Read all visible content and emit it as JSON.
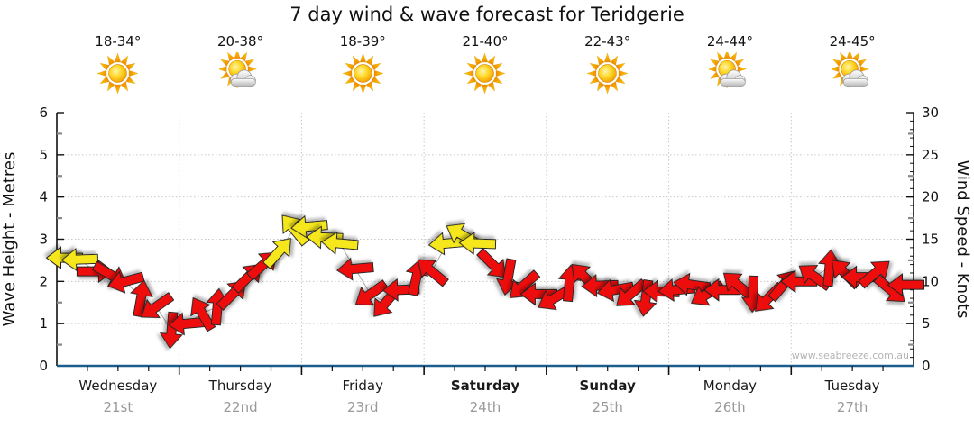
{
  "title": "7 day wind & wave forecast for Teridgerie",
  "watermark": "www.seabreeze.com.au",
  "colors": {
    "arrow_red": "#ee1111",
    "arrow_yellow": "#f5e71e",
    "arrow_outline": "#222222",
    "bottom_axis_blue": "#1b5e8e",
    "grid_gray": "#c8c8c8",
    "connector_gray": "#aaaaaa",
    "date_gray": "#999999",
    "watermark_gray": "#b4b4b4"
  },
  "days": [
    {
      "name": "Wednesday",
      "date": "21st",
      "temp": "18-34°",
      "icon": "sunny",
      "bold": false
    },
    {
      "name": "Thursday",
      "date": "22nd",
      "temp": "20-38°",
      "icon": "partly-cloudy",
      "bold": false
    },
    {
      "name": "Friday",
      "date": "23rd",
      "temp": "18-39°",
      "icon": "sunny",
      "bold": false
    },
    {
      "name": "Saturday",
      "date": "24th",
      "temp": "21-40°",
      "icon": "sunny",
      "bold": true
    },
    {
      "name": "Sunday",
      "date": "25th",
      "temp": "22-43°",
      "icon": "sunny",
      "bold": true
    },
    {
      "name": "Monday",
      "date": "26th",
      "temp": "24-44°",
      "icon": "partly-cloudy",
      "bold": false
    },
    {
      "name": "Tuesday",
      "date": "27th",
      "temp": "24-45°",
      "icon": "partly-cloudy",
      "bold": false
    }
  ],
  "chart_data": {
    "type": "scatter",
    "subtype": "wind-direction-arrows",
    "title": "7 day wind & wave forecast for Teridgerie",
    "x_axis": "time, 3-hour intervals over 7 days (56 arrows, Wednesday 21st to Tuesday 27th)",
    "left_axis": {
      "label": "Wave Height - Metres",
      "min": 0,
      "max": 6,
      "tick_step": 1,
      "ticks": [
        0,
        1,
        2,
        3,
        4,
        5,
        6
      ]
    },
    "right_axis": {
      "label": "Wind Speed - Knots",
      "min": 0,
      "max": 30,
      "tick_step": 5,
      "ticks": [
        0,
        5,
        10,
        15,
        20,
        25,
        30
      ]
    },
    "grid": "dotted horizontal lines at 1-5 metres; dotted vertical lines at day boundaries",
    "legend": "none",
    "arrow_value_axis": "right (wind speed in knots)",
    "arrow_direction_convention": "degrees counter-clockwise from east; arrow points where wind blows toward",
    "arrows": [
      [
        0,
        12.8,
        180,
        "yellow"
      ],
      [
        1,
        12.6,
        182,
        "yellow"
      ],
      [
        2,
        11.2,
        0,
        "red"
      ],
      [
        3,
        10.8,
        -30,
        "red"
      ],
      [
        4,
        10.0,
        195,
        "red"
      ],
      [
        5,
        8.0,
        80,
        "red"
      ],
      [
        6,
        7.0,
        215,
        "red"
      ],
      [
        7,
        4.2,
        265,
        "red"
      ],
      [
        8,
        5.0,
        185,
        "red"
      ],
      [
        9,
        6.2,
        120,
        "red"
      ],
      [
        10,
        7.0,
        85,
        "red"
      ],
      [
        11,
        8.5,
        45,
        "red"
      ],
      [
        12,
        10.5,
        45,
        "red"
      ],
      [
        13,
        12.0,
        42,
        "red"
      ],
      [
        14,
        13.5,
        48,
        "yellow"
      ],
      [
        15,
        16.2,
        130,
        "yellow"
      ],
      [
        16,
        16.5,
        185,
        "yellow"
      ],
      [
        17,
        15.2,
        178,
        "yellow"
      ],
      [
        18,
        14.5,
        175,
        "yellow"
      ],
      [
        19,
        11.5,
        185,
        "red"
      ],
      [
        20,
        8.5,
        215,
        "red"
      ],
      [
        21,
        7.5,
        230,
        "red"
      ],
      [
        22,
        9.0,
        182,
        "red"
      ],
      [
        23,
        10.5,
        78,
        "red"
      ],
      [
        24,
        11.2,
        140,
        "red"
      ],
      [
        25,
        14.5,
        185,
        "yellow"
      ],
      [
        26,
        15.5,
        150,
        "yellow"
      ],
      [
        27,
        14.5,
        178,
        "yellow"
      ],
      [
        28,
        12.0,
        -45,
        "red"
      ],
      [
        29,
        10.5,
        260,
        "red"
      ],
      [
        30,
        9.5,
        222,
        "red"
      ],
      [
        31,
        8.5,
        180,
        "red"
      ],
      [
        32,
        8.0,
        210,
        "red"
      ],
      [
        33,
        9.8,
        85,
        "red"
      ],
      [
        34,
        10.5,
        135,
        "red"
      ],
      [
        35,
        9.5,
        182,
        "red"
      ],
      [
        36,
        9.0,
        190,
        "red"
      ],
      [
        37,
        8.5,
        220,
        "red"
      ],
      [
        38,
        8.0,
        262,
        "red"
      ],
      [
        39,
        8.8,
        178,
        "red"
      ],
      [
        40,
        9.0,
        185,
        "red"
      ],
      [
        41,
        9.6,
        172,
        "red"
      ],
      [
        42,
        8.5,
        210,
        "red"
      ],
      [
        43,
        9.0,
        180,
        "red"
      ],
      [
        44,
        9.6,
        140,
        "red"
      ],
      [
        45,
        8.5,
        268,
        "red"
      ],
      [
        46,
        8.0,
        225,
        "red"
      ],
      [
        47,
        9.6,
        50,
        "red"
      ],
      [
        48,
        10.0,
        180,
        "red"
      ],
      [
        49,
        10.6,
        145,
        "red"
      ],
      [
        50,
        11.6,
        85,
        "red"
      ],
      [
        51,
        11.0,
        135,
        "red"
      ],
      [
        52,
        10.5,
        180,
        "red"
      ],
      [
        53,
        11.0,
        40,
        "red"
      ],
      [
        54,
        9.0,
        -40,
        "red"
      ],
      [
        55,
        9.6,
        180,
        "red"
      ]
    ]
  }
}
